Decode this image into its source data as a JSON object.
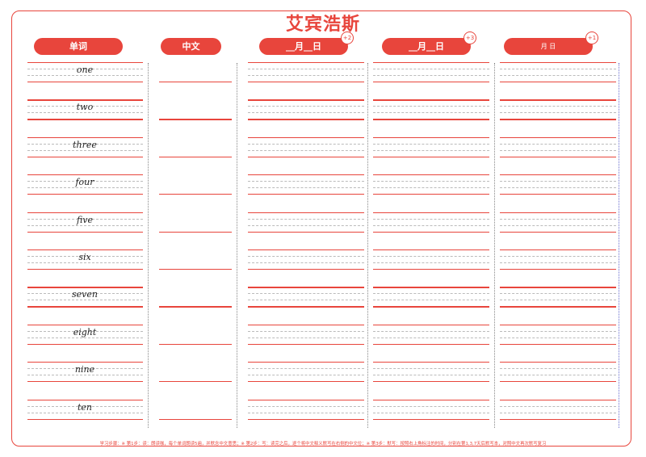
{
  "title": "艾宾浩斯",
  "headers": {
    "word": "单词",
    "chinese": "中文",
    "date1": "__月__日",
    "date2": "__月__日",
    "date3": "月   日"
  },
  "badges": {
    "b1": "+2",
    "b2": "+3",
    "b3": "+1"
  },
  "words": [
    "one",
    "two",
    "three",
    "four",
    "five",
    "six",
    "seven",
    "eight",
    "nine",
    "ten"
  ],
  "footer": "学习步骤：※ 第1步：读：朗读咖，每个单词朗读5遍，并默念中文意思；※ 第2步：写：读完之后，逐个将中文释义默写在右侧的中文位；※ 第3步：默写：按照右上角标注的时间，分别在第1,3,7天后默写本，对照中文再次默写复习",
  "colors": {
    "accent": "#e8453c"
  }
}
